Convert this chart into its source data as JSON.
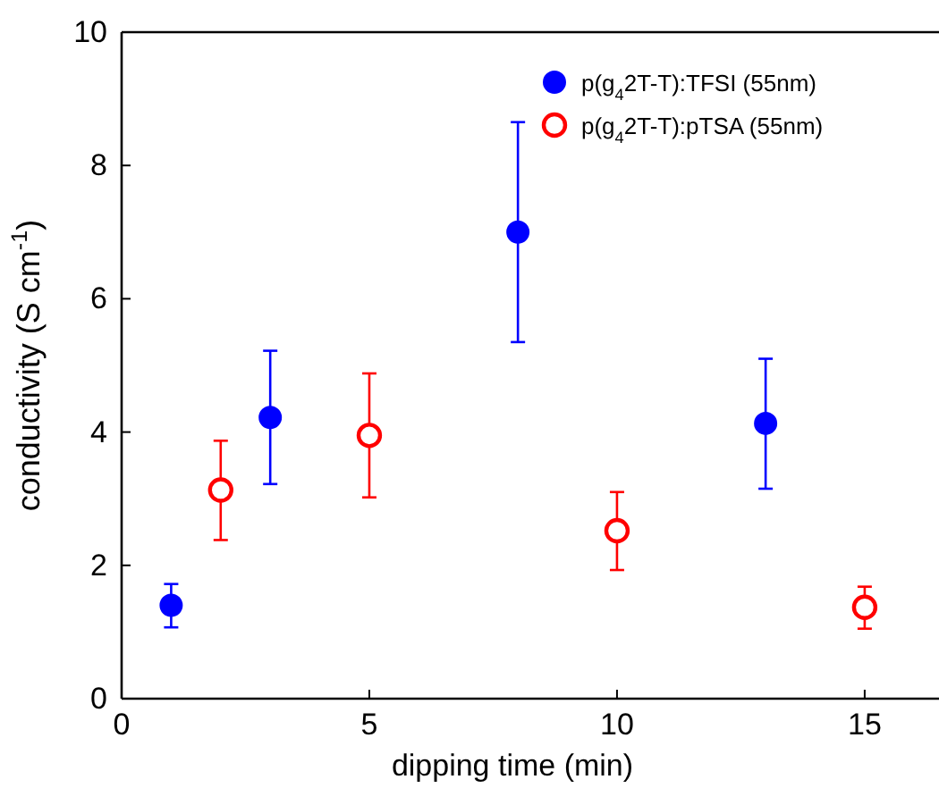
{
  "chart_data": {
    "type": "scatter",
    "xlabel": "dipping time (min)",
    "ylabel": "conductivity (S cm$^{-1}$)",
    "xlim": [
      0,
      16.5
    ],
    "xticks": [
      0,
      5,
      10,
      15
    ],
    "ylim": [
      0,
      10
    ],
    "yticks": [
      0,
      2,
      4,
      6,
      8,
      10
    ],
    "grid": false,
    "legend": "top right",
    "series": [
      {
        "name": "p(g$_{4}$2T-T):TFSI (55nm)",
        "color": "#0000ff",
        "marker": "circle",
        "x": [
          1,
          3,
          8,
          13
        ],
        "values": [
          1.4,
          4.22,
          7.0,
          4.13
        ],
        "errors": [
          [
            1.07,
            1.72
          ],
          [
            3.22,
            5.22
          ],
          [
            5.35,
            8.65
          ],
          [
            3.15,
            5.1
          ]
        ]
      },
      {
        "name": "p(g$_{4}$2T-T):pTSA (55nm)",
        "color": "#ff0000",
        "marker": "circle-open",
        "x": [
          2,
          5,
          10,
          15
        ],
        "values": [
          3.13,
          3.95,
          2.52,
          1.37
        ],
        "errors": [
          [
            2.38,
            3.87
          ],
          [
            3.02,
            4.88
          ],
          [
            1.93,
            3.1
          ],
          [
            1.05,
            1.68
          ]
        ]
      }
    ]
  }
}
